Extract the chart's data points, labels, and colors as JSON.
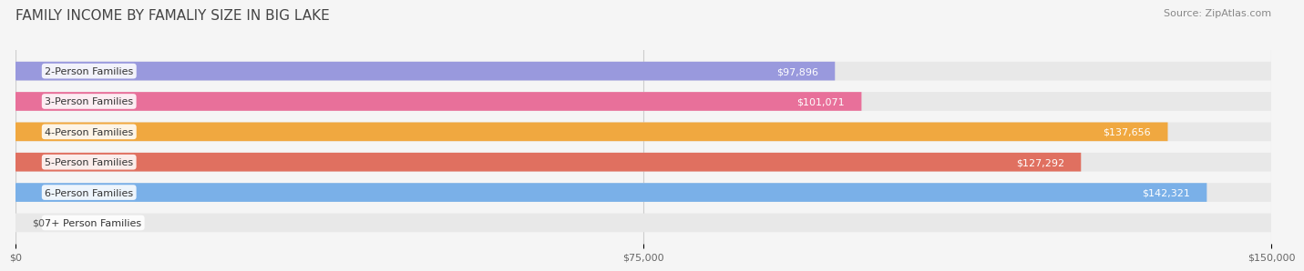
{
  "title": "FAMILY INCOME BY FAMALIY SIZE IN BIG LAKE",
  "source": "Source: ZipAtlas.com",
  "categories": [
    "2-Person Families",
    "3-Person Families",
    "4-Person Families",
    "5-Person Families",
    "6-Person Families",
    "7+ Person Families"
  ],
  "values": [
    97896,
    101071,
    137656,
    127292,
    142321,
    0
  ],
  "bar_colors": [
    "#9999dd",
    "#e8709a",
    "#f0a840",
    "#e07060",
    "#7ab0e8",
    "#c8b8d8"
  ],
  "value_labels": [
    "$97,896",
    "$101,071",
    "$137,656",
    "$127,292",
    "$142,321",
    "$0"
  ],
  "x_ticks": [
    0,
    75000,
    150000
  ],
  "x_tick_labels": [
    "$0",
    "$75,000",
    "$150,000"
  ],
  "xlim": [
    0,
    150000
  ],
  "background_color": "#f5f5f5",
  "bar_background_color": "#e8e8e8",
  "title_fontsize": 11,
  "source_fontsize": 8,
  "label_fontsize": 8,
  "value_fontsize": 8
}
